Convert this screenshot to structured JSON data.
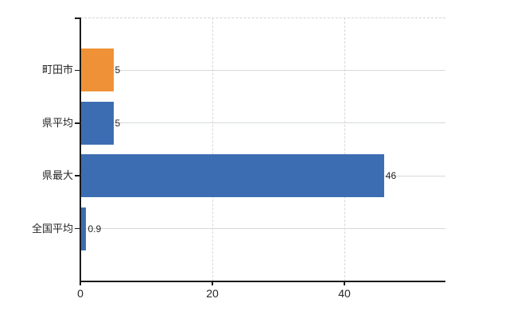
{
  "chart": {
    "background": "#ffffff",
    "axis_color": "#1a1a1a",
    "text_color": "#262626",
    "h_grid_color": "#d5dbd5",
    "v_grid_color": "#dcd5d5",
    "top_border_color": "#d3d3d3"
  },
  "chart_data": {
    "type": "bar",
    "orientation": "horizontal",
    "title": "",
    "xlabel": "",
    "ylabel": "",
    "categories": [
      "町田市",
      "県平均",
      "県最大",
      "全国平均"
    ],
    "values": [
      5,
      5,
      46,
      0.9
    ],
    "value_labels": [
      "5",
      "5",
      "46",
      "0.9"
    ],
    "bar_colors": [
      "#ef9237",
      "#3c6db2",
      "#3c6db2",
      "#3c6db2"
    ],
    "x_ticks": [
      0,
      20,
      40
    ],
    "x_tick_labels": [
      "0",
      "20",
      "40"
    ],
    "xlim": [
      0,
      55.3
    ],
    "grid": true,
    "legend": null
  }
}
